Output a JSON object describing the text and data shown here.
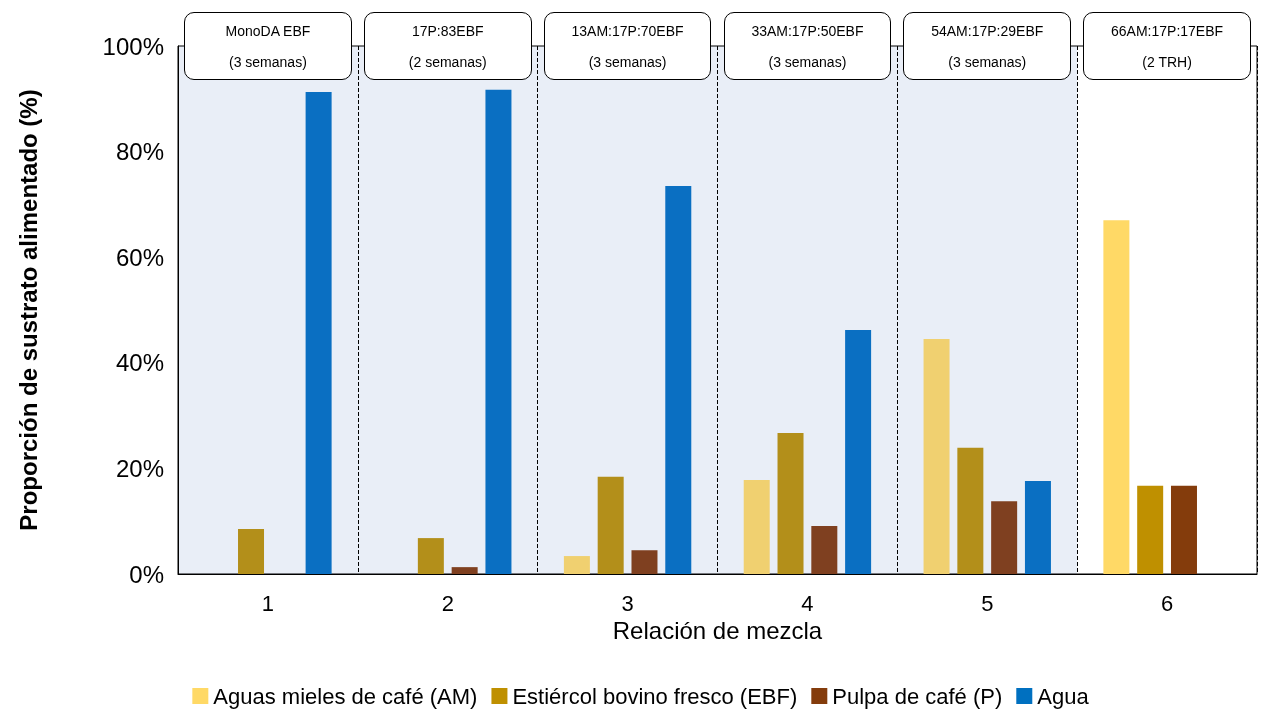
{
  "chart_data": {
    "type": "bar",
    "xlabel": "Relación de mezcla",
    "ylabel": "Proporción de sustrato alimentado (%)",
    "categories": [
      "1",
      "2",
      "3",
      "4",
      "5",
      "6"
    ],
    "series": [
      {
        "name": "Aguas mieles de café (AM)",
        "color": "#ffd966",
        "colors": [
          "#f0d070",
          "#f0d070",
          "#f0d070",
          "#f0d070",
          "#f0d070",
          "#ffd966"
        ],
        "values": [
          null,
          null,
          3.4,
          17.8,
          44.5,
          67.0
        ]
      },
      {
        "name": "Estiércol bovino fresco (EBF)",
        "color": "#bf9000",
        "colors": [
          "#b38f1a",
          "#b38f1a",
          "#b38f1a",
          "#b38f1a",
          "#b38f1a",
          "#bf9000"
        ],
        "values": [
          8.5,
          6.8,
          18.4,
          26.7,
          23.9,
          16.7
        ]
      },
      {
        "name": "Pulpa de café (P)",
        "color": "#843c0c",
        "colors": [
          "#7f4020",
          "#7f4020",
          "#7f4020",
          "#7f4020",
          "#7f4020",
          "#843c0c"
        ],
        "values": [
          null,
          1.3,
          4.5,
          9.1,
          13.8,
          16.7
        ]
      },
      {
        "name": "Agua",
        "color": "#0070c0",
        "colors": [
          "#0a6fc2",
          "#0a6fc2",
          "#0a6fc2",
          "#0a6fc2",
          "#0a6fc2",
          "#0070c0"
        ],
        "values": [
          91.3,
          91.7,
          73.5,
          46.2,
          17.6,
          null
        ]
      }
    ],
    "ylim": [
      0,
      100
    ],
    "yticks": [
      {
        "value": 0,
        "label": "0%"
      },
      {
        "value": 20,
        "label": "20%"
      },
      {
        "value": 40,
        "label": "40%"
      },
      {
        "value": 60,
        "label": "60%"
      },
      {
        "value": 80,
        "label": "80%"
      },
      {
        "value": 100,
        "label": "100%"
      }
    ],
    "bands": [
      {
        "axis": "x",
        "from": "1",
        "to": "5",
        "color": "#e9eef7"
      }
    ],
    "annotations": [
      "MonoDA EBF\n(3 semanas)",
      "17P:83EBF\n(2 semanas)",
      "13AM:17P:70EBF\n(3 semanas)",
      "33AM:17P:50EBF\n(3 semanas)",
      "54AM:17P:29EBF\n(3 semanas)",
      "66AM:17P:17EBF\n(2 TRH)"
    ],
    "grid": "x",
    "legend": "bottom"
  }
}
